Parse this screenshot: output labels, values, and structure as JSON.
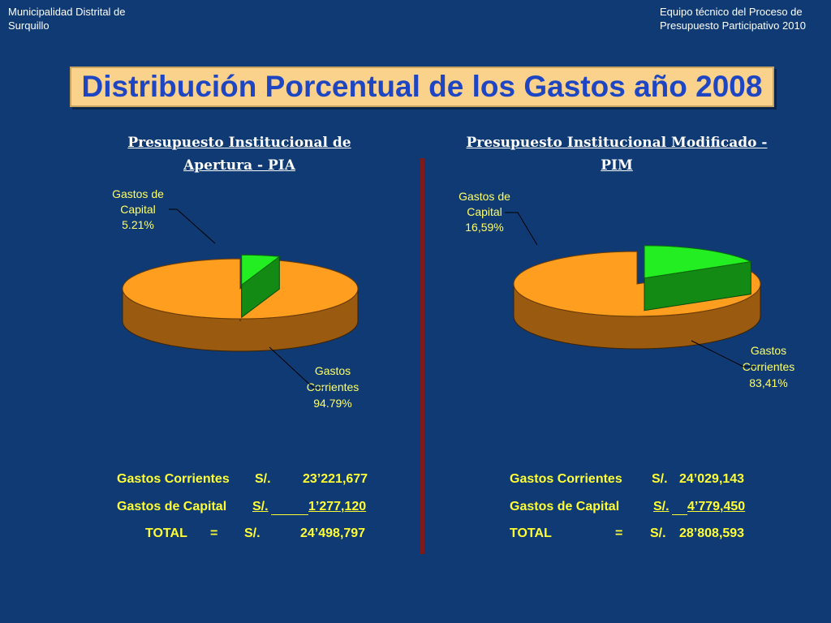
{
  "header": {
    "left_line1": "Municipalidad Distrital de",
    "left_line2": "Surquillo",
    "right_line1": "Equipo técnico del Proceso de",
    "right_line2": "Presupuesto Participativo 2010"
  },
  "slide_title": "Distribución Porcentual de los Gastos año 2008",
  "colors": {
    "background": "#0f3a73",
    "corrientes": "#ff9e1f",
    "corrientes_side": "#9a5a10",
    "capital": "#22ee22",
    "capital_side": "#138a13",
    "label": "#ffff66"
  },
  "chart_data": [
    {
      "type": "pie",
      "title_line1": "Presupuesto Institucional de",
      "title_line2": "Apertura - PIA",
      "slices": [
        {
          "label_line1": "Gastos",
          "label_line2": "Corrientes",
          "value": 94.79,
          "value_text": "94.79%"
        },
        {
          "label_line1": "Gastos de",
          "label_line2": "Capital",
          "value": 5.21,
          "value_text": "5.21%"
        }
      ]
    },
    {
      "type": "pie",
      "title_line1": "Presupuesto Institucional Modificado -",
      "title_line2": "PIM",
      "slices": [
        {
          "label_line1": "Gastos",
          "label_line2": "Corrientes",
          "value": 83.41,
          "value_text": "83,41%"
        },
        {
          "label_line1": "Gastos de",
          "label_line2": "Capital",
          "value": 16.59,
          "value_text": "16,59%"
        }
      ]
    }
  ],
  "summary_left": {
    "row1": {
      "label": "Gastos Corrientes",
      "currency": "S/.",
      "amount": "23’221,677"
    },
    "row2": {
      "label": "Gastos de Capital",
      "currency": "S/.",
      "amount": "1’277,120"
    },
    "row3": {
      "label": "TOTAL",
      "equals": "=",
      "currency": "S/.",
      "amount": "24’498,797"
    }
  },
  "summary_right": {
    "row1": {
      "label": "Gastos Corrientes",
      "currency": "S/.",
      "amount": "24’029,143"
    },
    "row2": {
      "label": "Gastos de Capital",
      "currency": "S/.",
      "amount": "4’779,450"
    },
    "row3": {
      "label": "TOTAL",
      "equals": "=",
      "currency": "S/.",
      "amount": "28’808,593"
    }
  }
}
